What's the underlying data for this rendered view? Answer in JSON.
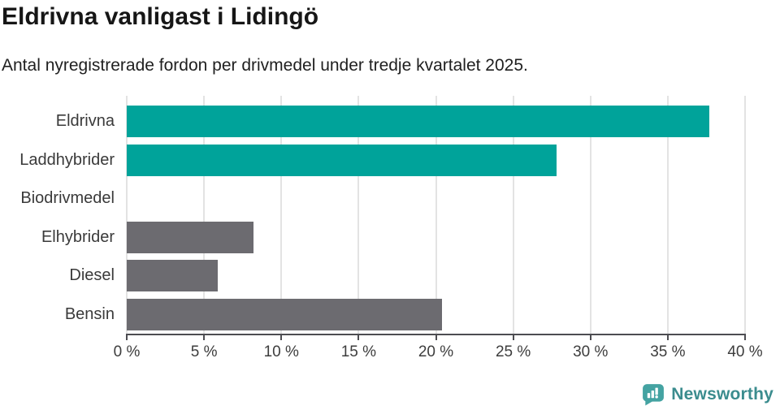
{
  "header": {
    "title": "Eldrivna vanligast i Lidingö",
    "subtitle": "Antal nyregistrerade fordon per drivmedel under tredje kvartalet 2025."
  },
  "chart_data": {
    "type": "bar",
    "orientation": "horizontal",
    "categories": [
      "Eldrivna",
      "Laddhybrider",
      "Biodrivmedel",
      "Elhybrider",
      "Diesel",
      "Bensin"
    ],
    "values": [
      37.7,
      27.8,
      0,
      8.2,
      5.9,
      20.4
    ],
    "unit": "%",
    "bar_colors": [
      "#00a39a",
      "#00a39a",
      "#00a39a",
      "#6c6b70",
      "#6c6b70",
      "#6c6b70"
    ],
    "xlim": [
      0,
      40
    ],
    "x_tick_values": [
      0,
      5,
      10,
      15,
      20,
      25,
      30,
      35,
      40
    ],
    "x_tick_labels": [
      "0 %",
      "5 %",
      "10 %",
      "15 %",
      "20 %",
      "25 %",
      "30 %",
      "35 %",
      "40 %"
    ],
    "grid": true,
    "legend": false,
    "title": "Eldrivna vanligast i Lidingö",
    "xlabel": "",
    "ylabel": ""
  },
  "colors": {
    "teal": "#00a39a",
    "gray": "#6c6b70",
    "grid": "#e3e3e3",
    "axis": "#4d4d52",
    "tick_text": "#3d3d3d",
    "label_text": "#3a3a3a",
    "logo_icon": "#44a3a2",
    "logo_text": "#3b8c8e"
  },
  "footer": {
    "brand_name": "Newsworthy"
  }
}
